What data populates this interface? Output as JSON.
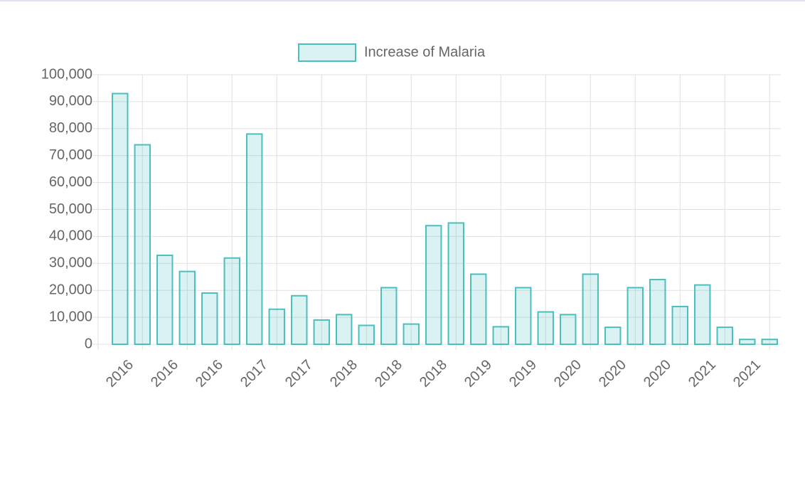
{
  "chart_data": {
    "type": "bar",
    "legend_position": "top",
    "grid": true,
    "color": "#4bbfbc",
    "fill_color": "rgba(75,191,188,0.2)",
    "categories": [
      "2016",
      null,
      "2016",
      null,
      "2016",
      null,
      "2017",
      null,
      "2017",
      null,
      "2018",
      null,
      "2018",
      null,
      "2018",
      null,
      "2019",
      null,
      "2019",
      null,
      "2020",
      null,
      "2020",
      null,
      "2020",
      null,
      "2021",
      null,
      "2021",
      null
    ],
    "series": [
      {
        "name": "Increase of Malaria",
        "color": "#4bbfbc",
        "values": [
          93000,
          74000,
          33000,
          27000,
          19000,
          32000,
          78000,
          13000,
          18000,
          9000,
          11000,
          7000,
          21000,
          7500,
          44000,
          45000,
          26000,
          6500,
          21000,
          12000,
          11000,
          26000,
          6300,
          21000,
          24000,
          14000,
          22000,
          6300,
          1800,
          1800
        ]
      }
    ],
    "ylim": [
      0,
      100000
    ],
    "yticks": [
      0,
      {
        "value": 10000,
        "label": "10,000"
      },
      {
        "value": 20000,
        "label": "20,000"
      },
      {
        "value": 30000,
        "label": "30,000"
      },
      {
        "value": 40000,
        "label": "40,000"
      },
      {
        "value": 50000,
        "label": "50,000"
      },
      {
        "value": 60000,
        "label": "60,000"
      },
      {
        "value": 70000,
        "label": "70,000"
      },
      {
        "value": 80000,
        "label": "80,000"
      },
      {
        "value": 90000,
        "label": "90,000"
      },
      {
        "value": 100000,
        "label": "100,000"
      }
    ]
  }
}
